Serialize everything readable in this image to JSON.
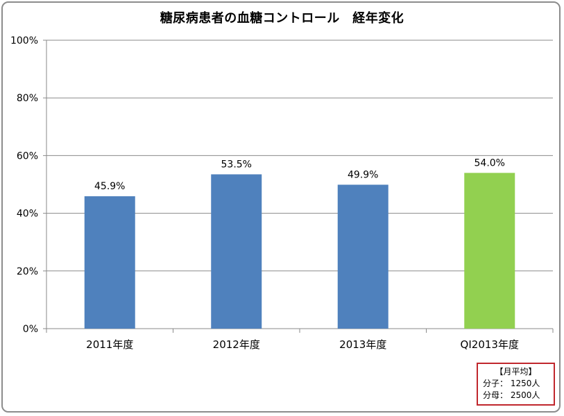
{
  "chart_data": {
    "type": "bar",
    "title": "糖尿病患者の血糖コントロール　経年変化",
    "categories": [
      "2011年度",
      "2012年度",
      "2013年度",
      "QI2013年度"
    ],
    "values": [
      45.9,
      53.5,
      49.9,
      54.0
    ],
    "data_labels": [
      "45.9%",
      "53.5%",
      "49.9%",
      "54.0%"
    ],
    "bar_colors": [
      "#4f81bd",
      "#4f81bd",
      "#4f81bd",
      "#92d050"
    ],
    "ylim": [
      0,
      100
    ],
    "yticks": [
      0,
      20,
      40,
      60,
      80,
      100
    ],
    "ytick_labels": [
      "0%",
      "20%",
      "40%",
      "60%",
      "80%",
      "100%"
    ],
    "xlabel": "",
    "ylabel": "",
    "grid": true,
    "legend": "none"
  },
  "note": {
    "title": "【月平均】",
    "numerator_label": "分子：",
    "numerator_value": "1250人",
    "denominator_label": "分母：",
    "denominator_value": "2500人"
  }
}
